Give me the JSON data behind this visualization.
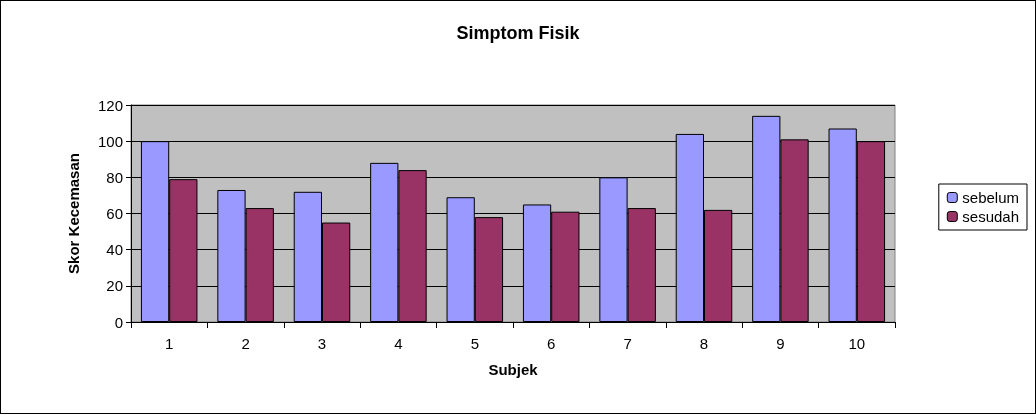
{
  "chart_data": {
    "type": "bar",
    "title": "Simptom Fisik",
    "xlabel": "Subjek",
    "ylabel": "Skor Kecemasan",
    "categories": [
      "1",
      "2",
      "3",
      "4",
      "5",
      "6",
      "7",
      "8",
      "9",
      "10"
    ],
    "series": [
      {
        "name": "sebelum",
        "color": "#9999ff",
        "values": [
          100,
          73,
          72,
          88,
          69,
          65,
          80,
          104,
          114,
          107
        ]
      },
      {
        "name": "sesudah",
        "color": "#993366",
        "values": [
          79,
          63,
          55,
          84,
          58,
          61,
          63,
          62,
          101,
          100
        ]
      }
    ],
    "ylim": [
      0,
      120
    ],
    "yticks": [
      0,
      20,
      40,
      60,
      80,
      100,
      120
    ],
    "grid": "y",
    "legend": "right"
  }
}
